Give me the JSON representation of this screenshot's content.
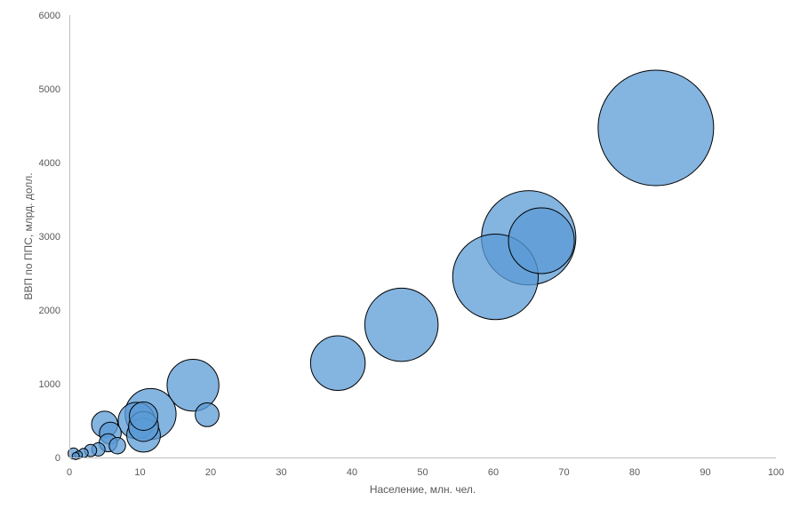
{
  "chart_data": {
    "type": "bubble",
    "xlabel": "Население, млн. чел.",
    "ylabel": "ВВП по ППС, млрд. долл.",
    "xlim": [
      0,
      100
    ],
    "ylim": [
      0,
      6000
    ],
    "xticks": [
      0,
      10,
      20,
      30,
      40,
      50,
      60,
      70,
      80,
      90,
      100
    ],
    "yticks": [
      0,
      1000,
      2000,
      3000,
      4000,
      5000,
      6000
    ],
    "grid": false,
    "legend": "none",
    "colors": {
      "bubble_fill": "#5b9bd5",
      "bubble_stroke": "#000000",
      "axis": "#bfbfbf",
      "text": "#595959"
    },
    "points": [
      {
        "x": 83.0,
        "y": 4470,
        "size": 4470
      },
      {
        "x": 65.0,
        "y": 2980,
        "size": 2980
      },
      {
        "x": 60.3,
        "y": 2450,
        "size": 2450
      },
      {
        "x": 66.8,
        "y": 2940,
        "size": 1450
      },
      {
        "x": 47.0,
        "y": 1800,
        "size": 1800
      },
      {
        "x": 38.0,
        "y": 1280,
        "size": 1000
      },
      {
        "x": 17.5,
        "y": 980,
        "size": 900
      },
      {
        "x": 19.5,
        "y": 580,
        "size": 190
      },
      {
        "x": 11.5,
        "y": 590,
        "size": 870
      },
      {
        "x": 10.5,
        "y": 300,
        "size": 380
      },
      {
        "x": 9.5,
        "y": 500,
        "size": 450
      },
      {
        "x": 10.5,
        "y": 420,
        "size": 300
      },
      {
        "x": 10.5,
        "y": 560,
        "size": 270
      },
      {
        "x": 5.0,
        "y": 450,
        "size": 230
      },
      {
        "x": 5.8,
        "y": 330,
        "size": 160
      },
      {
        "x": 5.5,
        "y": 200,
        "size": 110
      },
      {
        "x": 6.8,
        "y": 160,
        "size": 90
      },
      {
        "x": 4.1,
        "y": 110,
        "size": 60
      },
      {
        "x": 3.0,
        "y": 95,
        "size": 50
      },
      {
        "x": 2.0,
        "y": 60,
        "size": 30
      },
      {
        "x": 1.3,
        "y": 35,
        "size": 20
      },
      {
        "x": 0.6,
        "y": 55,
        "size": 40
      },
      {
        "x": 0.9,
        "y": 20,
        "size": 12
      }
    ]
  }
}
